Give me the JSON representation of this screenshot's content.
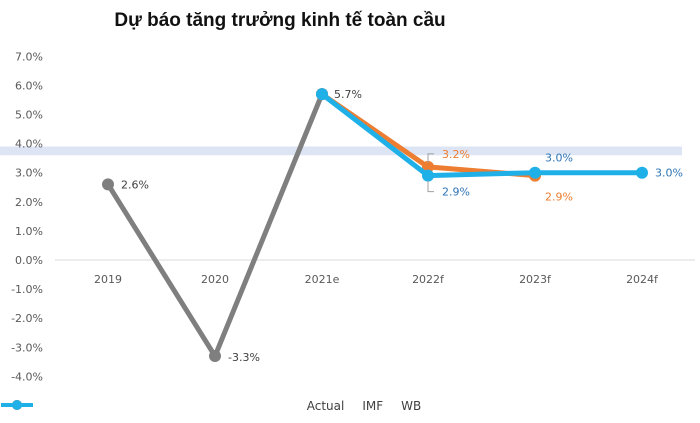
{
  "title": "Dự báo tăng trưởng kinh tế toàn cầu",
  "colors": {
    "actual": "#7f7f7f",
    "imf": "#ed7d31",
    "wb": "#1fb0e8",
    "band": "#dde5f4",
    "axis": "#d9d9d9"
  },
  "chart_data": {
    "type": "line",
    "title": "Dự báo tăng trưởng kinh tế toàn cầu",
    "xlabel": "",
    "ylabel": "",
    "categories": [
      "2019",
      "2020",
      "2021e",
      "2022f",
      "2023f",
      "2024f"
    ],
    "yticks": [
      "7.0%",
      "6.0%",
      "5.0%",
      "4.0%",
      "3.0%",
      "2.0%",
      "1.0%",
      "0.0%",
      "-1.0%",
      "-2.0%",
      "-3.0%",
      "-4.0%"
    ],
    "ylim": [
      -4,
      7
    ],
    "grid": false,
    "legend_position": "bottom",
    "series": [
      {
        "name": "Actual",
        "values": [
          2.6,
          -3.3,
          5.7,
          null,
          null,
          null
        ],
        "labels": [
          "2.6%",
          "-3.3%",
          "",
          null,
          null,
          null
        ]
      },
      {
        "name": "IMF",
        "values": [
          null,
          null,
          5.7,
          3.2,
          2.9,
          null
        ],
        "labels": [
          null,
          null,
          "",
          "3.2%",
          "2.9%",
          null
        ]
      },
      {
        "name": "WB",
        "values": [
          null,
          null,
          5.7,
          2.9,
          3.0,
          3.0
        ],
        "labels": [
          null,
          null,
          "5.7%",
          "2.9%",
          "3.0%",
          "3.0%"
        ]
      }
    ],
    "annotations": [
      {
        "type": "highlight-band",
        "y_from": 3.6,
        "y_to": 3.9
      }
    ]
  },
  "legend": [
    {
      "name": "Actual"
    },
    {
      "name": "IMF"
    },
    {
      "name": "WB"
    }
  ]
}
